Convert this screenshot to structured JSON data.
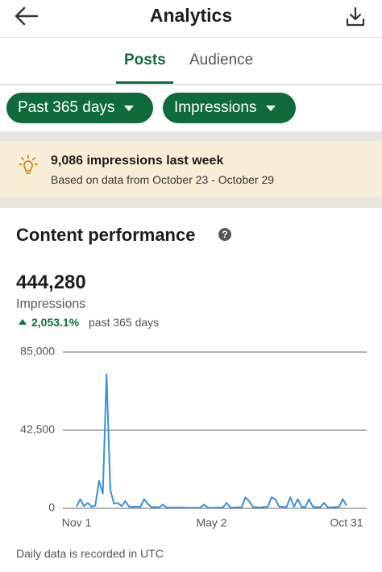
{
  "header": {
    "title": "Analytics"
  },
  "tabs": [
    "Posts",
    "Audience"
  ],
  "filters": [
    "Past 365 days",
    "Impressions"
  ],
  "insight": {
    "title": "9,086 impressions last week",
    "subtitle": "Based on data from October 23 - October 29"
  },
  "section": {
    "title": "Content performance",
    "metric_value": "444,280",
    "metric_label": "Impressions",
    "change": "2,053.1%",
    "change_period": "past 365 days"
  },
  "chart_data": {
    "type": "line",
    "color": "#3b8fdb",
    "grid": true,
    "categories": [
      "Nov 1",
      null,
      null,
      null,
      null,
      null,
      null,
      null,
      null,
      null,
      null,
      null,
      null,
      null,
      null,
      null,
      null,
      null,
      null,
      null,
      null,
      null,
      null,
      null,
      null,
      null,
      null,
      null,
      null,
      null,
      null,
      null,
      null,
      null,
      null,
      null,
      "May 2",
      null,
      null,
      null,
      null,
      null,
      null,
      null,
      null,
      null,
      null,
      null,
      null,
      null,
      null,
      null,
      null,
      null,
      null,
      null,
      null,
      null,
      null,
      null,
      null,
      null,
      null,
      null,
      null,
      null,
      null,
      null,
      null,
      null,
      null,
      null,
      "Oct 31"
    ],
    "values": [
      1000,
      5000,
      1200,
      3000,
      900,
      1500,
      15000,
      8000,
      73000,
      10000,
      2500,
      3000,
      1200,
      4000,
      900,
      800,
      1000,
      700,
      5000,
      2500,
      600,
      700,
      500,
      2000,
      500,
      400,
      500,
      400,
      500,
      400,
      300,
      400,
      300,
      400,
      2000,
      400,
      300,
      400,
      500,
      400,
      3000,
      500,
      400,
      600,
      500,
      6000,
      4000,
      800,
      600,
      500,
      700,
      900,
      6000,
      5000,
      1000,
      800,
      700,
      6000,
      900,
      5000,
      800,
      700,
      5000,
      900,
      600,
      700,
      3000,
      600,
      500,
      700,
      800,
      5000,
      1500
    ],
    "ylim": [
      0,
      85000
    ],
    "yticks": [
      0,
      {
        "value": 42500,
        "label": "42,500"
      },
      {
        "value": 85000,
        "label": "85,000"
      }
    ]
  },
  "footnote": "Daily data is recorded in UTC"
}
